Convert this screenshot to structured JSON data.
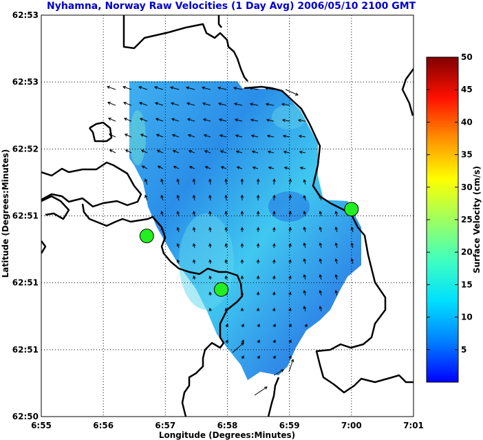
{
  "chart_data": {
    "type": "map-vector-field",
    "title": "Nyhamna, Norway Raw Velocities (1 Day Avg) 2006/05/10 2100 GMT",
    "xlabel": "Longitude (Degrees:Minutes)",
    "ylabel": "Latitude (Degrees:Minutes)",
    "x_tick_labels": [
      "6:55",
      "6:56",
      "6:57",
      "6:58",
      "6:59",
      "7:00",
      "7:01"
    ],
    "y_tick_labels": [
      "62:50",
      "62:51",
      "62:51",
      "62:51",
      "62:52",
      "62:53",
      "62:53"
    ],
    "grid": true,
    "colorbar": {
      "label": "Surface Velocity (cm/s)",
      "min": 0,
      "max": 50,
      "tick_labels": [
        "5",
        "10",
        "15",
        "20",
        "25",
        "30",
        "35",
        "40",
        "45",
        "50"
      ]
    },
    "stations": [
      {
        "lon_min": 56.7,
        "lat_min": 51.35
      },
      {
        "lon_min": 57.9,
        "lat_min": 50.95
      },
      {
        "lon_min": 60.0,
        "lat_min": 51.55
      }
    ],
    "colors": {
      "title": "#0000cc",
      "station": "#22ee22",
      "coast": "#000000"
    }
  }
}
